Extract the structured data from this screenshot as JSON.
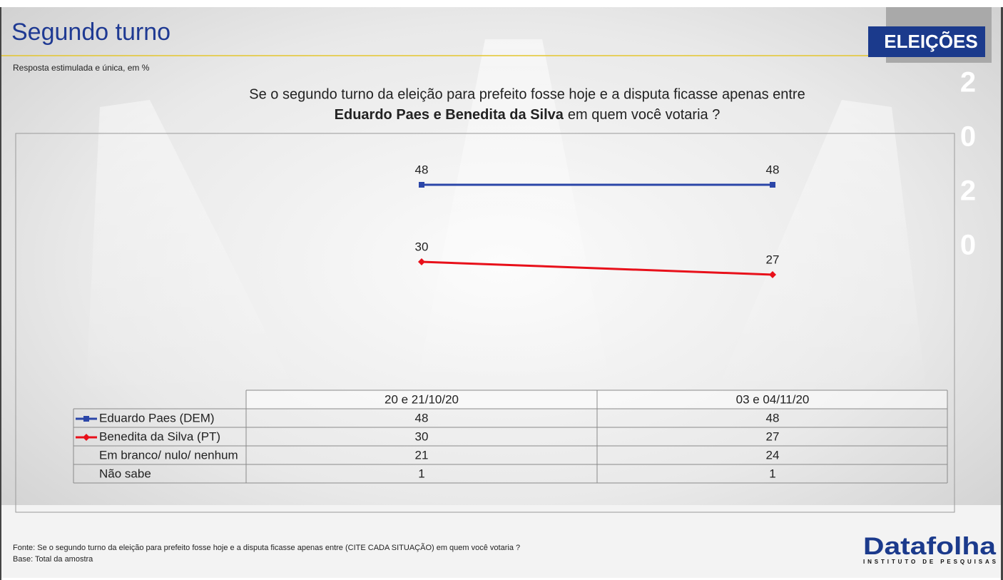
{
  "header": {
    "title": "Segundo turno",
    "subtitle": "Resposta estimulada e única, em %",
    "badge": "ELEIÇÕES",
    "year_digits": [
      "2",
      "0",
      "2",
      "0"
    ]
  },
  "question": {
    "line1": "Se o segundo turno da eleição para prefeito fosse hoje e a disputa ficasse apenas entre",
    "bold": "Eduardo Paes e Benedita da Silva",
    "rest": "em quem você votaria ?"
  },
  "chart_data": {
    "type": "line",
    "categories": [
      "20 e 21/10/20",
      "03 e 04/11/20"
    ],
    "ylim": [
      0,
      60
    ],
    "series": [
      {
        "name": "Eduardo Paes (DEM)",
        "color": "#2b46a8",
        "marker": "square",
        "values": [
          48,
          48
        ]
      },
      {
        "name": "Benedita da Silva (PT)",
        "color": "#e8101a",
        "marker": "diamond",
        "values": [
          30,
          27
        ]
      }
    ],
    "table_rows": [
      {
        "name": "Em branco/ nulo/ nenhum",
        "values": [
          21,
          24
        ]
      },
      {
        "name": "Não sabe",
        "values": [
          1,
          1
        ]
      }
    ]
  },
  "footer": {
    "source": "Fonte: Se o segundo turno da eleição para prefeito fosse hoje e a disputa ficasse apenas entre (CITE CADA SITUAÇÃO) em quem você votaria ?",
    "base": "Base: Total da amostra",
    "logo": "Datafolha",
    "logo_sub": "INSTITUTO DE PESQUISAS"
  }
}
